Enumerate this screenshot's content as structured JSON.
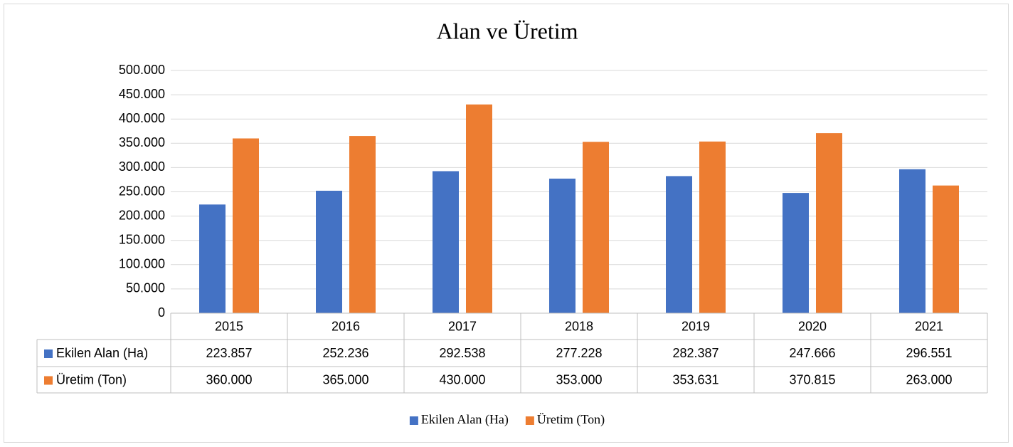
{
  "chart_data": {
    "type": "bar",
    "title": "Alan ve Üretim",
    "categories": [
      "2015",
      "2016",
      "2017",
      "2018",
      "2019",
      "2020",
      "2021"
    ],
    "series": [
      {
        "name": "Ekilen Alan (Ha)",
        "color": "#4472c4",
        "values": [
          223857,
          252236,
          292538,
          277228,
          282387,
          247666,
          296551
        ],
        "value_labels": [
          "223.857",
          "252.236",
          "292.538",
          "277.228",
          "282.387",
          "247.666",
          "296.551"
        ]
      },
      {
        "name": "Üretim (Ton)",
        "color": "#ed7d31",
        "values": [
          360000,
          365000,
          430000,
          353000,
          353631,
          370815,
          263000
        ],
        "value_labels": [
          "360.000",
          "365.000",
          "430.000",
          "353.000",
          "353.631",
          "370.815",
          "263.000"
        ]
      }
    ],
    "ylim": [
      0,
      500000
    ],
    "yticks": [
      0,
      {
        "value": 50000,
        "label": "50.000"
      },
      {
        "value": 100000,
        "label": "100.000"
      },
      {
        "value": 150000,
        "label": "150.000"
      },
      {
        "value": 200000,
        "label": "200.000"
      },
      {
        "value": 250000,
        "label": "250.000"
      },
      {
        "value": 300000,
        "label": "300.000"
      },
      {
        "value": 350000,
        "label": "350.000"
      },
      {
        "value": 400000,
        "label": "400.000"
      },
      {
        "value": 450000,
        "label": "450.000"
      },
      {
        "value": 500000,
        "label": "500.000"
      }
    ],
    "grid": true,
    "data_table": true,
    "legend": "bottom"
  }
}
